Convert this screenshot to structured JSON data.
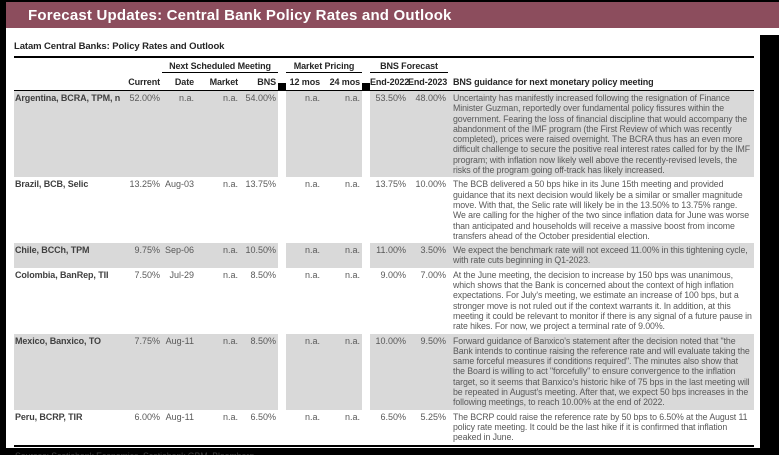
{
  "colors": {
    "title_bar_bg": "#8c4d5d",
    "row_shaded_bg": "#d9d9d9",
    "frame": "#000000"
  },
  "title_bar": {
    "text": "Forecast Updates: Central Bank Policy Rates and Outlook"
  },
  "table": {
    "subtitle": "Latam Central Banks: Policy Rates and Outlook",
    "groups": [
      {
        "label": "Next Scheduled Meeting"
      },
      {
        "label": "Market Pricing"
      },
      {
        "label": "BNS Forecast"
      }
    ],
    "columns": [
      "Current",
      "Date",
      "Market",
      "BNS",
      "12 mos",
      "24 mos",
      "End-2022",
      "End-2023",
      "BNS guidance for next monetary policy meeting"
    ],
    "rows": [
      {
        "bank": "Argentina, BCRA, TPM, n.a.",
        "current": "52.00%",
        "date": "n.a.",
        "market": "n.a.",
        "bns": "54.00%",
        "mos12": "n.a.",
        "mos24": "n.a.",
        "end2022": "53.50%",
        "end2023": "48.00%",
        "guidance": "Uncertainty has manifestly increased following the resignation of Finance Minister Guzman, reportedly over fundamental policy fissures within the government. Fearing the loss of financial discipline that would accompany the abandonment of the IMF program (the First Review of which was recently completed), prices were raised overnight. The BCRA thus has an even more difficult challenge to secure the positive real interest rates called for by the IMF program; with inflation now likely well above the recently-revised levels, the risks of the program going off-track has likely increased."
      },
      {
        "bank": "Brazil, BCB, Selic",
        "current": "13.25%",
        "date": "Aug-03",
        "market": "n.a.",
        "bns": "13.75%",
        "mos12": "n.a.",
        "mos24": "n.a.",
        "end2022": "13.75%",
        "end2023": "10.00%",
        "guidance": "The BCB delivered a 50 bps hike in its June 15th meeting and provided guidance that its next decision would likely be a similar or smaller magnitude move. With that, the Selic rate will likely be in the 13.50% to 13.75% range. We are calling for the higher of the two since inflation data for June was worse than anticipated and households will receive a massive boost from income transfers ahead of the October presidential election."
      },
      {
        "bank": "Chile, BCCh, TPM",
        "current": "9.75%",
        "date": "Sep-06",
        "market": "n.a.",
        "bns": "10.50%",
        "mos12": "n.a.",
        "mos24": "n.a.",
        "end2022": "11.00%",
        "end2023": "3.50%",
        "guidance": "We expect the benchmark rate will not exceed 11.00% in this tightening cycle, with rate cuts beginning in Q1-2023."
      },
      {
        "bank": "Colombia, BanRep, TII",
        "current": "7.50%",
        "date": "Jul-29",
        "market": "n.a.",
        "bns": "8.50%",
        "mos12": "n.a.",
        "mos24": "n.a.",
        "end2022": "9.00%",
        "end2023": "7.00%",
        "guidance": "At the June meeting, the decision to increase by 150 bps was unanimous, which shows that the Bank is concerned about the context of high inflation expectations. For July's meeting, we estimate an increase of 100 bps, but a stronger move is not ruled out if the context warrants it. In addition, at this meeting it could be relevant to monitor if there is any signal of a future pause in rate hikes. For now, we project a terminal rate of 9.00%."
      },
      {
        "bank": "Mexico, Banxico, TO",
        "current": "7.75%",
        "date": "Aug-11",
        "market": "n.a.",
        "bns": "8.50%",
        "mos12": "n.a.",
        "mos24": "n.a.",
        "end2022": "10.00%",
        "end2023": "9.50%",
        "guidance": "Forward guidance of Banxico's statement after the decision noted that \"the Bank intends to continue raising the reference rate and will evaluate taking the same forceful measures if conditions required\". The minutes also show that the Board is willing to act \"forcefully\" to ensure convergence to the inflation target, so it seems that Banxico's historic hike of 75 bps in the last meeting will be repeated in August's meeting. After that, we expect 50 bps increases in the following meetings, to reach 10.00% at the end of 2022."
      },
      {
        "bank": "Peru, BCRP, TIR",
        "current": "6.00%",
        "date": "Aug-11",
        "market": "n.a.",
        "bns": "6.50%",
        "mos12": "n.a.",
        "mos24": "n.a.",
        "end2022": "6.50%",
        "end2023": "5.25%",
        "guidance": "The BCRP could raise the reference rate by 50 bps to 6.50% at the August 11 policy rate meeting. It could be the last hike if it is confirmed that inflation peaked in June."
      }
    ],
    "sources": "Sources: Scotiabank Economics, Scotiabank GBM, Bloomberg."
  }
}
